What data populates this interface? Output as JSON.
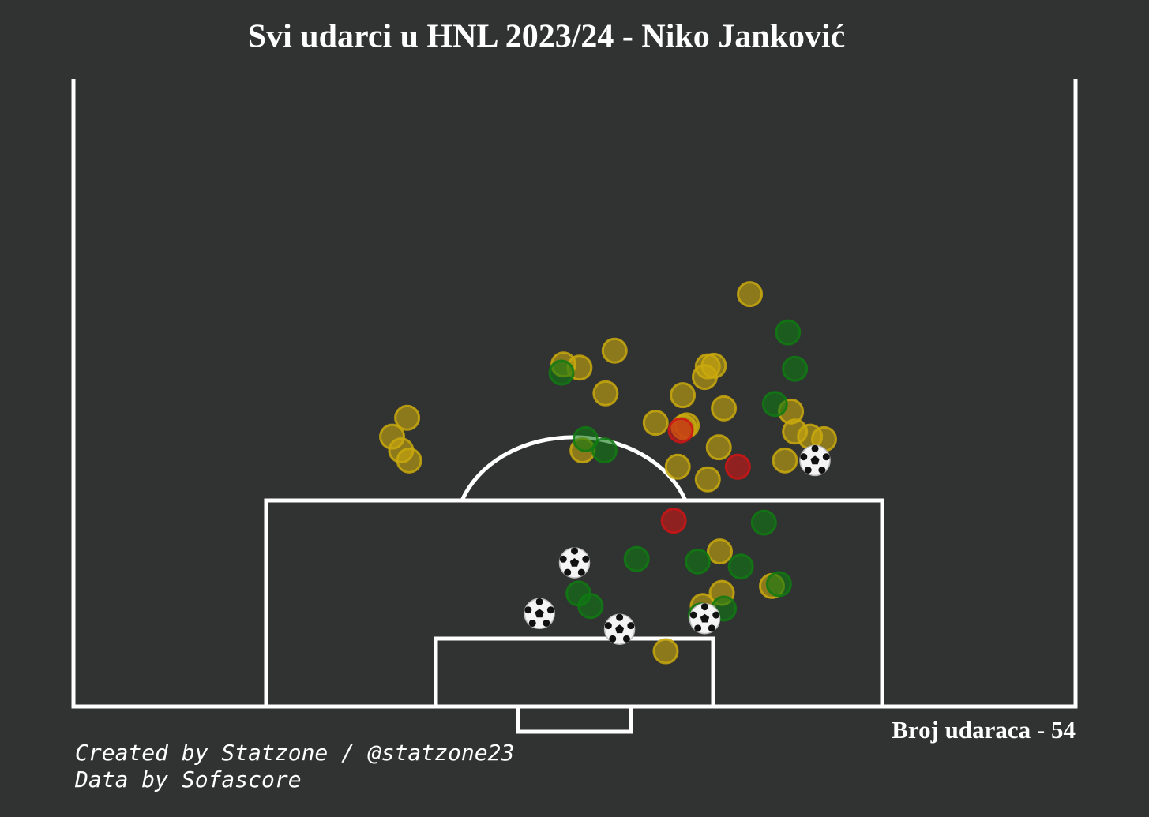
{
  "chart_data": {
    "type": "scatter",
    "title": "Svi udarci u HNL 2023/24 - Niko Janković",
    "annotation": "Broj udaraca - 54",
    "credits": [
      "Created by Statzone / @statzone23",
      "Data by Sofascore"
    ],
    "xlim": [
      0,
      100
    ],
    "ylim": [
      0,
      100
    ],
    "series": [
      {
        "color": "#c9a90d",
        "marker": "circle",
        "x": [
          67.5,
          54.0,
          48.9,
          50.5,
          63.3,
          63.9,
          63.0,
          53.1,
          60.8,
          64.9,
          33.3,
          71.6,
          58.1,
          61.2,
          72.0,
          31.8,
          73.5,
          74.9,
          32.7,
          33.5,
          50.8,
          64.4,
          71.0,
          60.3,
          63.3,
          64.5,
          64.7,
          69.7,
          62.8,
          59.1,
          60.9
        ],
        "values": [
          65.7,
          56.7,
          54.5,
          54.0,
          54.2,
          54.3,
          52.5,
          49.9,
          49.6,
          47.5,
          46.0,
          47.0,
          45.2,
          44.8,
          43.8,
          43.0,
          43.0,
          42.6,
          40.8,
          39.2,
          40.8,
          41.3,
          39.2,
          38.2,
          36.2,
          24.7,
          18.1,
          19.2,
          16.0,
          8.8,
          44.5
        ]
      },
      {
        "color": "#0f7a12",
        "marker": "circle",
        "x": [
          71.3,
          72.0,
          48.7,
          70.0,
          51.1,
          53.0,
          68.9,
          56.2,
          62.3,
          66.6,
          70.4,
          50.4,
          51.6,
          64.9,
          62.6
        ],
        "values": [
          59.6,
          53.8,
          53.2,
          48.2,
          42.6,
          40.8,
          29.3,
          23.5,
          23.1,
          22.3,
          19.5,
          18.0,
          16.0,
          15.6,
          14.5
        ]
      },
      {
        "color": "#cf1515",
        "marker": "circle",
        "x": [
          60.6,
          66.3,
          59.9
        ],
        "values": [
          44.0,
          38.2,
          29.6
        ]
      },
      {
        "color": "#ffffff",
        "marker": "ball",
        "x": [
          74.0,
          50.0,
          46.5,
          54.5,
          63.0
        ],
        "values": [
          39.2,
          22.9,
          14.8,
          12.3,
          14.0
        ]
      }
    ]
  }
}
